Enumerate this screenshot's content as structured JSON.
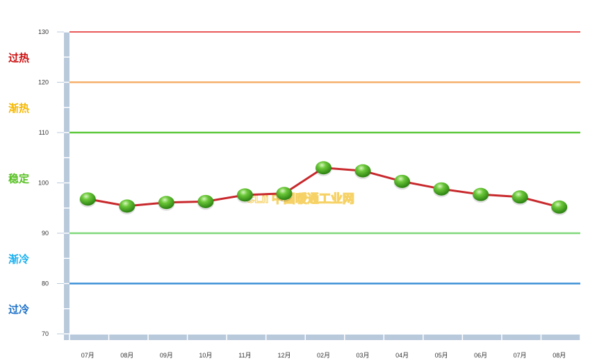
{
  "chart_data": {
    "type": "line",
    "categories": [
      "07月",
      "08月",
      "09月",
      "10月",
      "11月",
      "12月",
      "02月",
      "03月",
      "04月",
      "05月",
      "06月",
      "07月",
      "08月"
    ],
    "series": [
      {
        "values": [
          96.8,
          95.4,
          96.1,
          96.3,
          97.6,
          97.9,
          103.0,
          102.4,
          100.3,
          98.8,
          97.7,
          97.2,
          95.2
        ],
        "color": "#c8282c",
        "marker_color": "#3a9a1a"
      }
    ],
    "ylim": [
      70,
      130
    ],
    "yticks": [
      "70",
      "80",
      "90",
      "100",
      "110",
      "120",
      "130"
    ],
    "grid": false,
    "reference_lines": [
      {
        "value": 130,
        "color": "#e02020"
      },
      {
        "value": 120,
        "color": "#f5b06a"
      },
      {
        "value": 110,
        "color": "#5cc83a"
      },
      {
        "value": 90,
        "color": "#7fd87a"
      },
      {
        "value": 80,
        "color": "#3a8fd6"
      }
    ],
    "zones": [
      {
        "label": "过热",
        "at": 125,
        "color": "#cc1010"
      },
      {
        "label": "渐热",
        "at": 115,
        "color": "#f5b800"
      },
      {
        "label": "稳定",
        "at": 101,
        "color": "#55c020"
      },
      {
        "label": "渐冷",
        "at": 85,
        "color": "#18b0f0"
      },
      {
        "label": "过冷",
        "at": 75,
        "color": "#1a70c8"
      }
    ],
    "watermark": "CLii 中国暖通工业网"
  }
}
